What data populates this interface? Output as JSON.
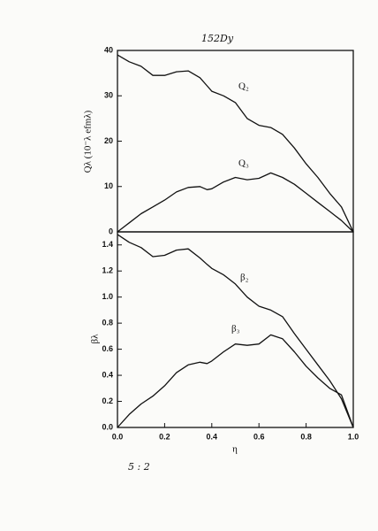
{
  "chart_data": [
    {
      "type": "line",
      "title": "152Dy",
      "y_label": "Qλ (10⁻λ efmλ)",
      "x": [
        0,
        0.05,
        0.1,
        0.15,
        0.2,
        0.25,
        0.3,
        0.35,
        0.38,
        0.4,
        0.45,
        0.5,
        0.55,
        0.6,
        0.65,
        0.7,
        0.75,
        0.8,
        0.85,
        0.9,
        0.95,
        1.0
      ],
      "series": [
        {
          "name": "Q₂",
          "color": "#111111",
          "values": [
            39,
            37.5,
            36.5,
            34.5,
            34.5,
            35.3,
            35.5,
            34,
            32.2,
            31,
            30,
            28.5,
            25,
            23.5,
            23,
            21.5,
            18.5,
            15,
            12,
            8.5,
            5.5,
            0
          ]
        },
        {
          "name": "Q₃",
          "color": "#111111",
          "values": [
            0,
            2,
            4,
            5.5,
            7,
            8.8,
            9.8,
            10,
            9.3,
            9.5,
            11,
            12,
            11.5,
            11.8,
            13,
            12,
            10.5,
            8.5,
            6.5,
            4.5,
            2.5,
            0
          ]
        }
      ],
      "xlim": [
        0,
        1
      ],
      "ylim": [
        0,
        40
      ],
      "yticks": [
        0,
        10,
        20,
        30,
        40
      ]
    },
    {
      "type": "line",
      "annotation": "5 : 2",
      "y_label": "βλ",
      "x_label": "η",
      "x": [
        0,
        0.05,
        0.1,
        0.15,
        0.2,
        0.25,
        0.3,
        0.35,
        0.38,
        0.4,
        0.45,
        0.5,
        0.55,
        0.6,
        0.65,
        0.7,
        0.75,
        0.8,
        0.85,
        0.9,
        0.95,
        1.0
      ],
      "series": [
        {
          "name": "β₂",
          "color": "#111111",
          "values": [
            1.48,
            1.42,
            1.38,
            1.31,
            1.32,
            1.36,
            1.37,
            1.3,
            1.25,
            1.22,
            1.17,
            1.1,
            1.0,
            0.93,
            0.9,
            0.85,
            0.72,
            0.6,
            0.48,
            0.36,
            0.22,
            0
          ]
        },
        {
          "name": "β₃",
          "color": "#111111",
          "values": [
            0,
            0.1,
            0.18,
            0.24,
            0.32,
            0.42,
            0.48,
            0.5,
            0.49,
            0.51,
            0.58,
            0.64,
            0.63,
            0.64,
            0.71,
            0.68,
            0.58,
            0.47,
            0.38,
            0.3,
            0.25,
            0
          ]
        }
      ],
      "xlim": [
        0,
        1
      ],
      "ylim": [
        0,
        1.5
      ],
      "xticks": [
        {
          "value": 0,
          "label": "0.0"
        },
        {
          "value": 0.2,
          "label": "0.2"
        },
        {
          "value": 0.4,
          "label": "0.4"
        },
        {
          "value": 0.6,
          "label": "0.6"
        },
        {
          "value": 0.8,
          "label": "0.8"
        },
        {
          "value": 1,
          "label": "1.0"
        }
      ],
      "yticks": [
        {
          "value": 0,
          "label": "0.0"
        },
        {
          "value": 0.2,
          "label": "0.2"
        },
        {
          "value": 0.4,
          "label": "0.4"
        },
        {
          "value": 0.6,
          "label": "0.6"
        },
        {
          "value": 0.8,
          "label": "0.8"
        },
        {
          "value": 1,
          "label": "1.0"
        },
        {
          "value": 1.2,
          "label": "1.2"
        },
        {
          "value": 1.4,
          "label": "1.4"
        }
      ]
    }
  ]
}
